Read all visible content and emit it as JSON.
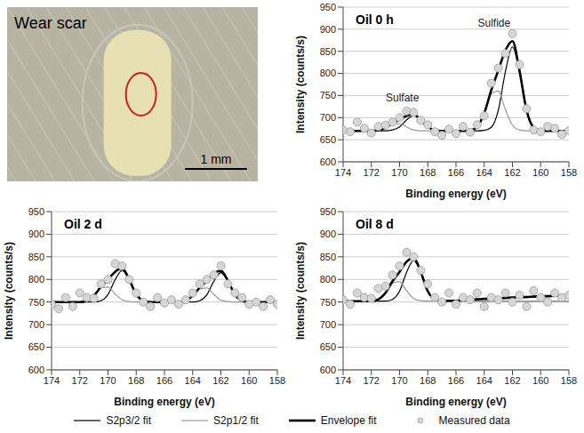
{
  "photo": {
    "label": "Wear scar",
    "scale_bar": "1 mm"
  },
  "chart_data": [
    {
      "type": "line",
      "title": "Oil 0 h",
      "x_label": "Binding energy (eV)",
      "y_label": "Intensity (counts/s)",
      "x": [
        174,
        173.5,
        173,
        172.5,
        172,
        171.5,
        171,
        170.5,
        170,
        169.5,
        169,
        168.5,
        168,
        167.5,
        167,
        166.5,
        166,
        165.5,
        165,
        164.5,
        164,
        163.5,
        163,
        162.5,
        162,
        161.5,
        161,
        160.5,
        160,
        159.5,
        159,
        158.5,
        158
      ],
      "xlim": [
        174,
        158
      ],
      "xticks": [
        174,
        172,
        170,
        168,
        166,
        164,
        162,
        160,
        158
      ],
      "ylim": [
        600,
        950
      ],
      "yticks": [
        600,
        650,
        700,
        750,
        800,
        850,
        900,
        950
      ],
      "grid": true,
      "legend": "bottom",
      "annotations": [
        {
          "text": "Sulfate",
          "x": 169.8,
          "y": 745
        },
        {
          "text": "Sulfide",
          "x": 163.3,
          "y": 915
        }
      ],
      "series": [
        {
          "name": "S2p3/2 fit",
          "type": "line",
          "color": "#000000",
          "line_style": "solid",
          "values": [
            670,
            670,
            670,
            670,
            670,
            670,
            670,
            672,
            679,
            695,
            705,
            695,
            679,
            672,
            670,
            670,
            670,
            670,
            670,
            670,
            671,
            678,
            717,
            804,
            860,
            804,
            717,
            678,
            671,
            670,
            670,
            670,
            670
          ]
        },
        {
          "name": "S2p1/2 fit",
          "type": "line",
          "color": "#999999",
          "line_style": "solid",
          "values": [
            670,
            670,
            670,
            670,
            670,
            672,
            677,
            685,
            686,
            679,
            672,
            670,
            670,
            670,
            670,
            670,
            670,
            670,
            671,
            679,
            709,
            754,
            760,
            718,
            683,
            672,
            670,
            670,
            670,
            670,
            670,
            670,
            670
          ]
        },
        {
          "name": "Envelope fit",
          "type": "line",
          "color": "#000000",
          "line_style": "thick",
          "values": [
            670,
            670,
            670,
            670,
            670,
            672,
            677,
            687,
            695,
            704,
            707,
            695,
            679,
            672,
            670,
            670,
            670,
            670,
            671,
            679,
            710,
            762,
            807,
            852,
            873,
            806,
            717,
            678,
            671,
            670,
            670,
            670,
            670
          ]
        },
        {
          "name": "Measured data",
          "type": "scatter",
          "color": "#aaaaaa",
          "marker": "circle",
          "values": [
            672,
            668,
            690,
            676,
            665,
            680,
            683,
            690,
            700,
            715,
            712,
            694,
            684,
            668,
            660,
            674,
            664,
            680,
            667,
            684,
            704,
            778,
            812,
            845,
            890,
            820,
            720,
            672,
            668,
            680,
            676,
            662,
            670
          ]
        }
      ]
    },
    {
      "type": "line",
      "title": "Oil 2 d",
      "x_label": "Binding energy (eV)",
      "y_label": "Intensity (counts/s)",
      "x": [
        174,
        173.5,
        173,
        172.5,
        172,
        171.5,
        171,
        170.5,
        170,
        169.5,
        169,
        168.5,
        168,
        167.5,
        167,
        166.5,
        166,
        165.5,
        165,
        164.5,
        164,
        163.5,
        163,
        162.5,
        162,
        161.5,
        161,
        160.5,
        160,
        159.5,
        159,
        158.5,
        158
      ],
      "xlim": [
        174,
        158
      ],
      "xticks": [
        174,
        172,
        170,
        168,
        166,
        164,
        162,
        160,
        158
      ],
      "ylim": [
        600,
        950
      ],
      "yticks": [
        600,
        650,
        700,
        750,
        800,
        850,
        900,
        950
      ],
      "grid": true,
      "legend": "bottom",
      "series": [
        {
          "name": "S2p3/2 fit",
          "type": "line",
          "color": "#000000",
          "line_style": "solid",
          "values": [
            750,
            750,
            750,
            750,
            750,
            750,
            750,
            753,
            767,
            799,
            820,
            799,
            767,
            753,
            750,
            750,
            750,
            750,
            750,
            750,
            750,
            753,
            766,
            796,
            815,
            796,
            766,
            753,
            750,
            750,
            750,
            750,
            750
          ]
        },
        {
          "name": "S2p1/2 fit",
          "type": "line",
          "color": "#999999",
          "line_style": "solid",
          "values": [
            750,
            750,
            750,
            750,
            750,
            753,
            764,
            781,
            783,
            768,
            755,
            751,
            750,
            750,
            750,
            750,
            750,
            750,
            750,
            753,
            764,
            779,
            781,
            767,
            754,
            751,
            750,
            750,
            750,
            750,
            750,
            750,
            750
          ]
        },
        {
          "name": "Envelope fit",
          "type": "line",
          "color": "#000000",
          "line_style": "thick",
          "values": [
            750,
            750,
            750,
            750,
            750,
            753,
            764,
            784,
            800,
            817,
            825,
            800,
            767,
            753,
            750,
            750,
            750,
            750,
            750,
            753,
            764,
            782,
            797,
            813,
            819,
            797,
            766,
            753,
            750,
            750,
            750,
            750,
            750
          ]
        },
        {
          "name": "Measured data",
          "type": "scatter",
          "color": "#aaaaaa",
          "marker": "circle",
          "values": [
            745,
            735,
            760,
            740,
            770,
            760,
            758,
            790,
            800,
            835,
            830,
            800,
            770,
            750,
            740,
            760,
            748,
            755,
            745,
            755,
            770,
            790,
            800,
            810,
            830,
            790,
            770,
            760,
            745,
            750,
            740,
            755,
            745
          ]
        }
      ]
    },
    {
      "type": "line",
      "title": "Oil 8 d",
      "x_label": "Binding energy (eV)",
      "y_label": "Intensity (counts/s)",
      "x": [
        174,
        173.5,
        173,
        172.5,
        172,
        171.5,
        171,
        170.5,
        170,
        169.5,
        169,
        168.5,
        168,
        167.5,
        167,
        166.5,
        166,
        165.5,
        165,
        164.5,
        164,
        163.5,
        163,
        162.5,
        162,
        161.5,
        161,
        160.5,
        160,
        159.5,
        159,
        158.5,
        158
      ],
      "xlim": [
        174,
        158
      ],
      "xticks": [
        174,
        172,
        170,
        168,
        166,
        164,
        162,
        160,
        158
      ],
      "ylim": [
        600,
        950
      ],
      "yticks": [
        600,
        650,
        700,
        750,
        800,
        850,
        900,
        950
      ],
      "grid": true,
      "legend": "bottom",
      "series": [
        {
          "name": "S2p3/2 fit",
          "type": "line",
          "color": "#000000",
          "line_style": "solid",
          "values": [
            752,
            752,
            752,
            752,
            752,
            752,
            752,
            756,
            774,
            816,
            842,
            816,
            774,
            756,
            752,
            752,
            752,
            752,
            752,
            752,
            752,
            752,
            752,
            752,
            752,
            752,
            752,
            752,
            752,
            752,
            752,
            752,
            752
          ]
        },
        {
          "name": "S2p1/2 fit",
          "type": "line",
          "color": "#999999",
          "line_style": "solid",
          "values": [
            752,
            752,
            752,
            752,
            752,
            756,
            770,
            792,
            795,
            775,
            758,
            753,
            752,
            752,
            752,
            752,
            752,
            752,
            752,
            752,
            752,
            752,
            752,
            752,
            752,
            752,
            752,
            752,
            752,
            752,
            752,
            752,
            752
          ]
        },
        {
          "name": "Envelope fit",
          "type": "line",
          "color": "#000000",
          "line_style": "thick",
          "values": [
            752,
            752,
            752,
            752,
            752,
            756,
            770,
            796,
            817,
            839,
            848,
            817,
            774,
            756,
            752,
            753,
            753,
            754,
            755,
            756,
            757,
            757,
            758,
            759,
            760,
            761,
            761,
            762,
            763,
            763,
            764,
            764,
            765
          ]
        },
        {
          "name": "Measured data",
          "type": "scatter",
          "color": "#aaaaaa",
          "marker": "circle",
          "values": [
            755,
            745,
            770,
            760,
            758,
            780,
            785,
            810,
            830,
            860,
            850,
            820,
            790,
            760,
            750,
            770,
            745,
            760,
            755,
            770,
            740,
            760,
            755,
            770,
            750,
            765,
            740,
            775,
            760,
            750,
            770,
            760,
            765
          ]
        }
      ]
    }
  ]
}
